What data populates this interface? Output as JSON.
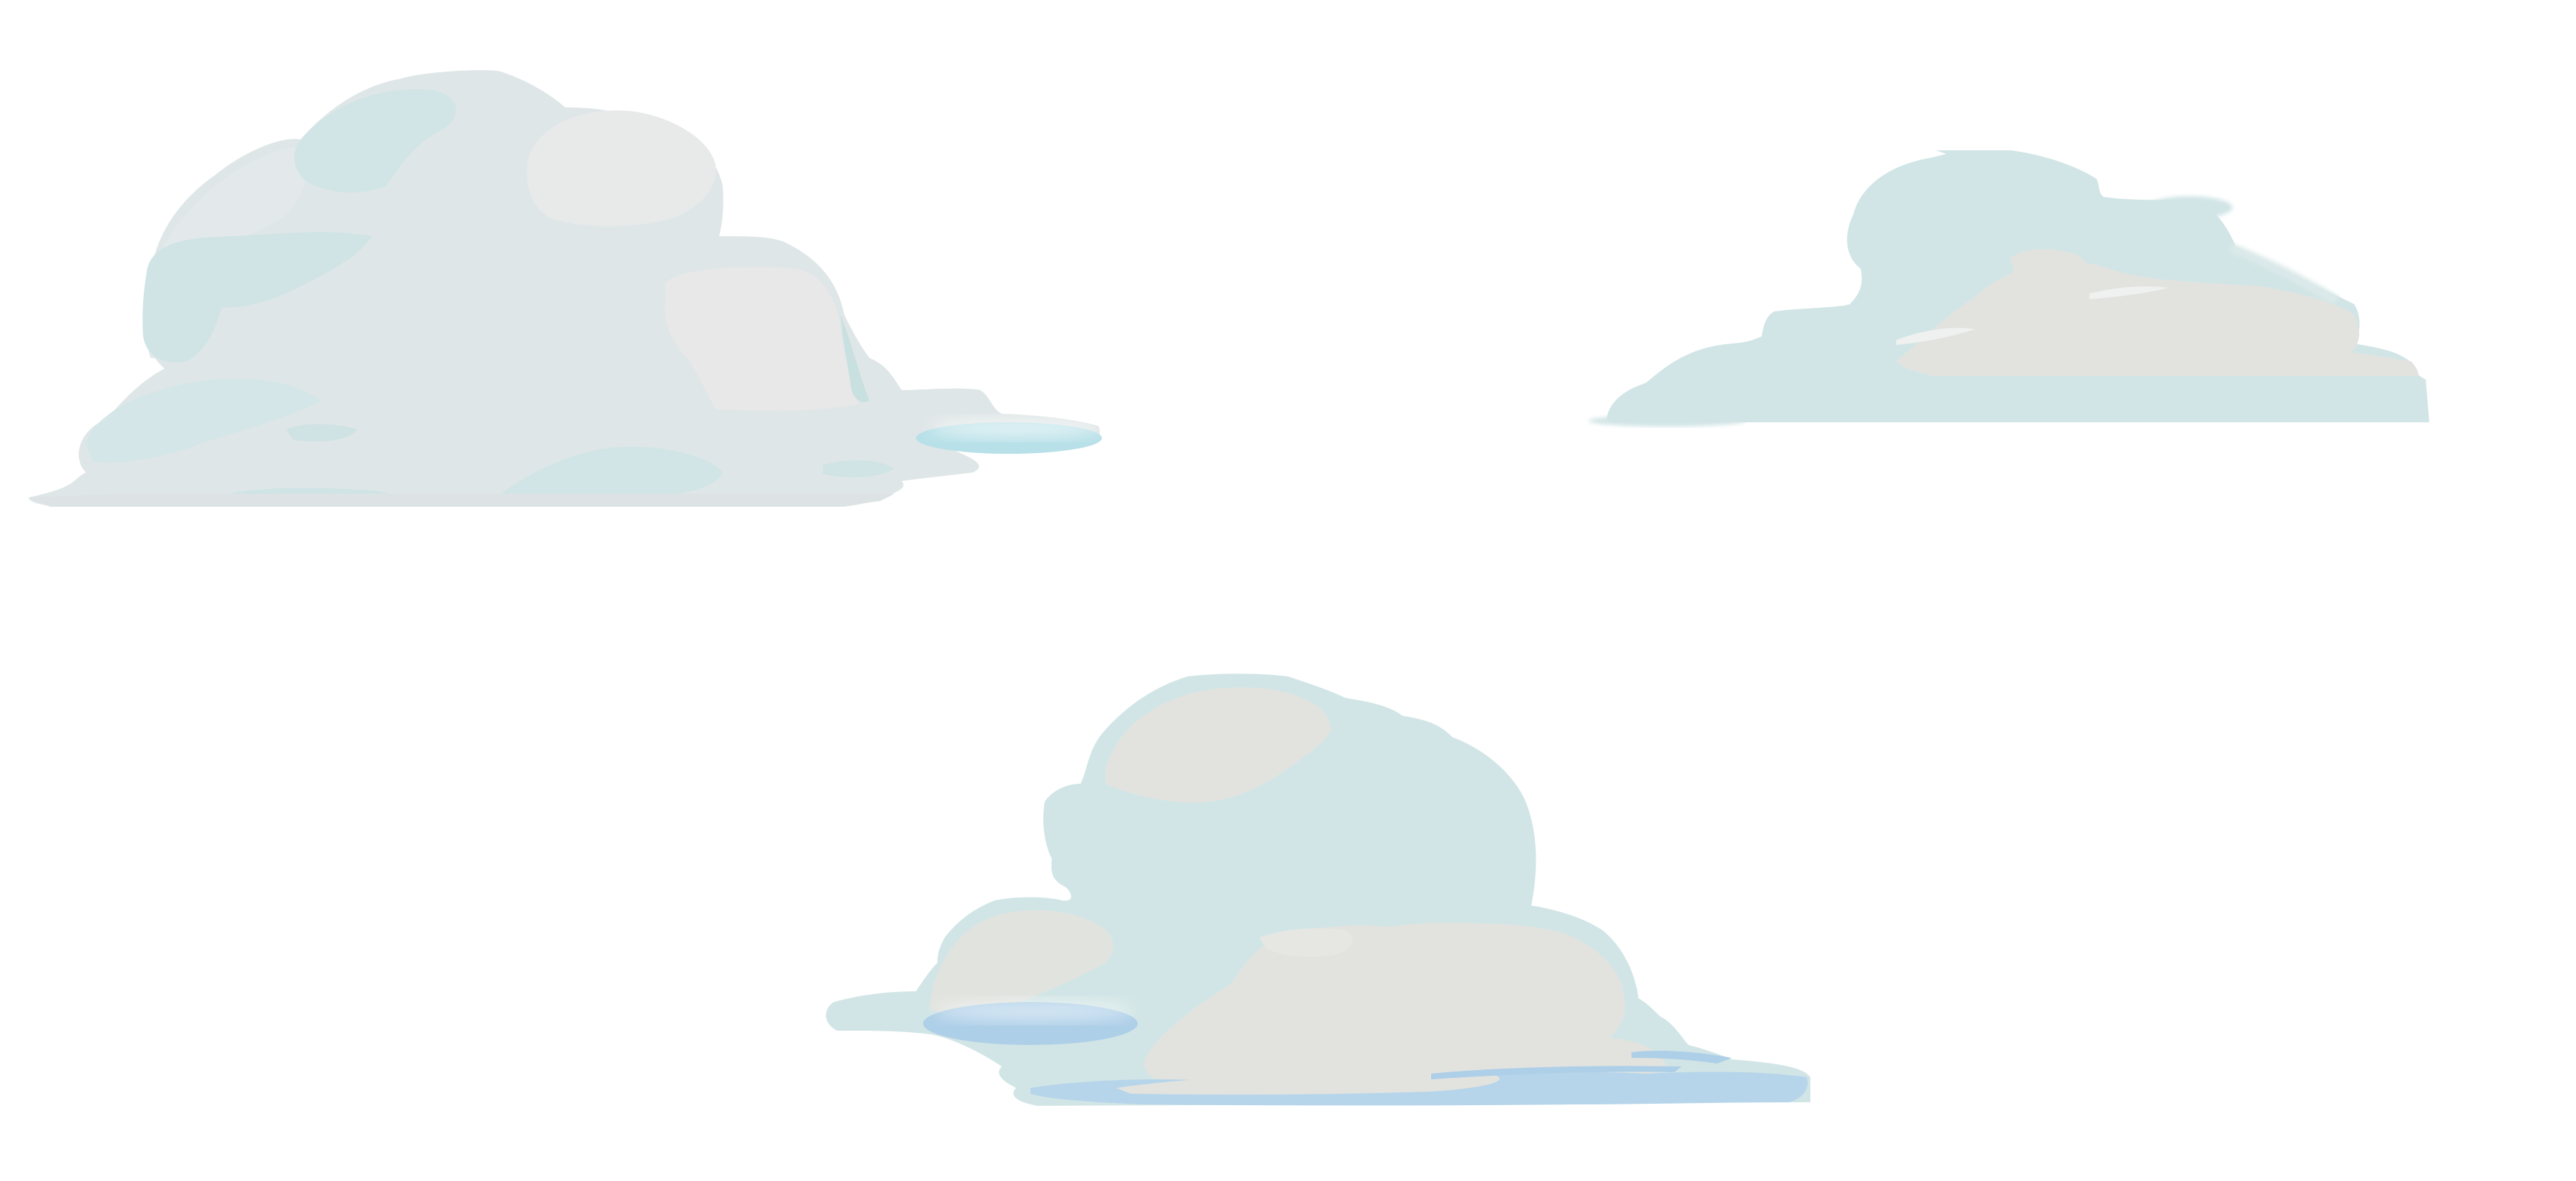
{
  "scene": {
    "description_free": true,
    "background_color": "#ffffff",
    "palette": {
      "teal": "#d2e5e6",
      "teal_deep": "#c9e0e1",
      "stone": "#e2e3df",
      "pale": "#e9ebea",
      "silver": "#dde5e6",
      "sky_blue": "#aecfe8",
      "cyan_pool": "#b8e0e8"
    },
    "clouds": [
      {
        "name": "cloud-large-left"
      },
      {
        "name": "cloud-flat-right"
      },
      {
        "name": "cloud-center-bottom"
      }
    ]
  }
}
